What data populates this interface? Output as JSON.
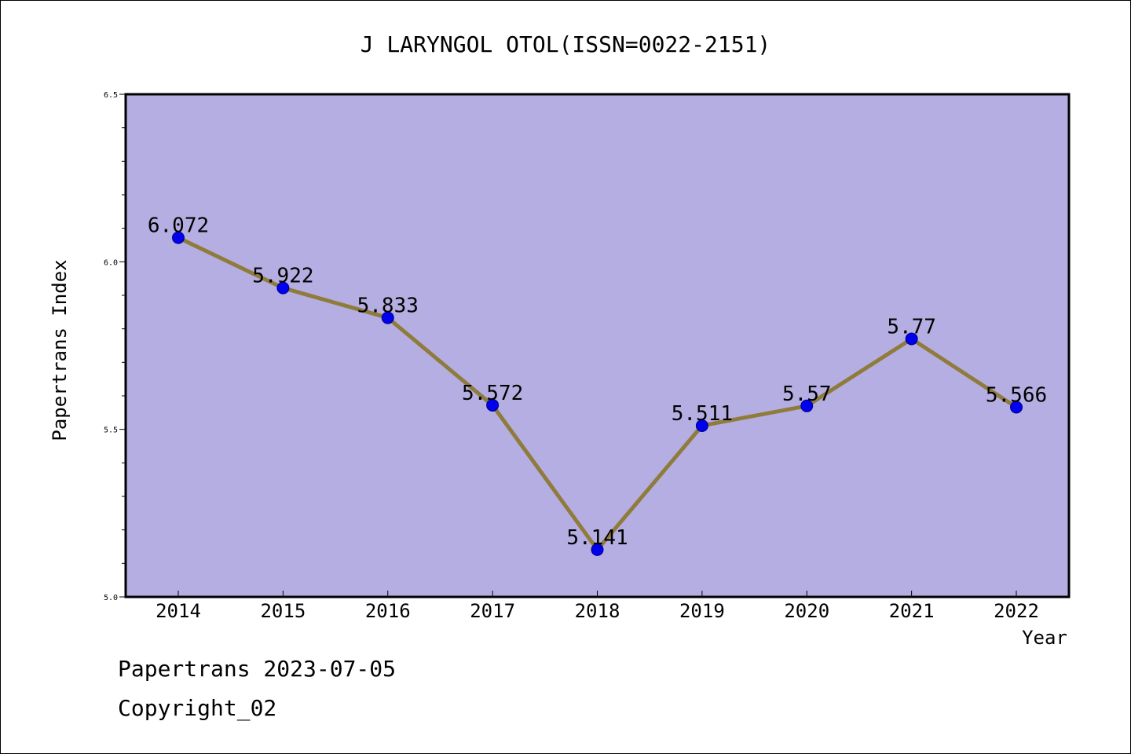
{
  "chart_data": {
    "type": "line",
    "title": "J LARYNGOL OTOL(ISSN=0022-2151)",
    "xlabel": "Year",
    "ylabel": "Papertrans Index",
    "categories": [
      "2014",
      "2015",
      "2016",
      "2017",
      "2018",
      "2019",
      "2020",
      "2021",
      "2022"
    ],
    "values": [
      6.072,
      5.922,
      5.833,
      5.572,
      5.141,
      5.511,
      5.57,
      5.77,
      5.566
    ],
    "data_labels": [
      "6.072",
      "5.922",
      "5.833",
      "5.572",
      "5.141",
      "5.511",
      "5.57",
      "5.77",
      "5.566"
    ],
    "ylim": [
      5.0,
      6.5
    ],
    "y_ticks": [
      "5.0",
      "5.5",
      "6.0",
      "6.5"
    ],
    "grid": false,
    "colors": {
      "plot_background": "#b5aee2",
      "line": "#8f7c3c",
      "marker": "#0000ee"
    }
  },
  "footer": {
    "line1": "Papertrans 2023-07-05",
    "line2": "Copyright_02"
  }
}
